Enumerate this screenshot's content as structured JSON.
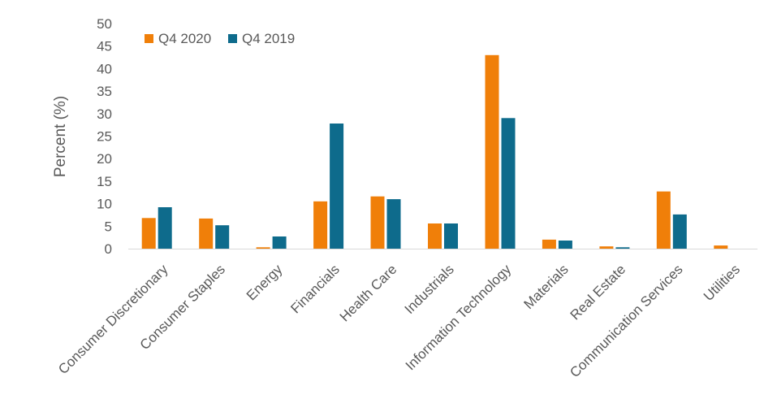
{
  "chart_data": {
    "type": "bar",
    "title": "",
    "xlabel": "",
    "ylabel": "Percent (%)",
    "ylim": [
      0,
      50
    ],
    "ytick_step": 5,
    "grid": false,
    "legend_position": "top-left",
    "categories": [
      "Consumer Discretionary",
      "Consumer Staples",
      "Energy",
      "Financials",
      "Health Care",
      "Industrials",
      "Information Technology",
      "Materials",
      "Real Estate",
      "Communication Services",
      "Utilities"
    ],
    "series": [
      {
        "name": "Q4 2020",
        "color": "#F07F09",
        "values": [
          6.8,
          6.7,
          0.3,
          10.5,
          11.6,
          5.6,
          43.0,
          2.0,
          0.5,
          12.7,
          0.7
        ]
      },
      {
        "name": "Q4 2019",
        "color": "#0E6B8C",
        "values": [
          9.2,
          5.2,
          2.7,
          27.8,
          11.0,
          5.6,
          29.0,
          1.8,
          0.3,
          7.6,
          0.0
        ]
      }
    ]
  }
}
